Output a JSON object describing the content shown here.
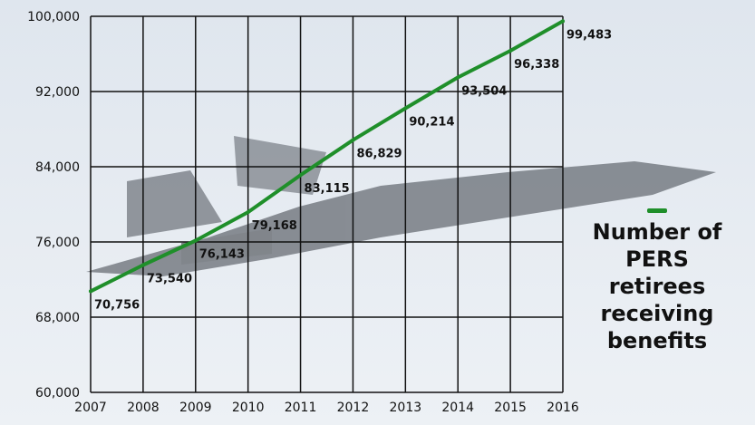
{
  "chart_data": {
    "type": "line",
    "x": [
      2007,
      2008,
      2009,
      2010,
      2011,
      2012,
      2013,
      2014,
      2015,
      2016
    ],
    "series": [
      {
        "name": "Number of PERS retirees receiving benefits",
        "values": [
          70756,
          73540,
          76143,
          79168,
          83115,
          86829,
          90214,
          93504,
          96338,
          99483
        ],
        "data_labels": [
          "70,756",
          "73,540",
          "76,143",
          "79,168",
          "83,115",
          "86,829",
          "90,214",
          "93,504",
          "96,338",
          "99,483"
        ],
        "color": "#1f8f2a"
      }
    ],
    "xlim": [
      2007,
      2016
    ],
    "ylim": [
      60000,
      100000
    ],
    "yticks": [
      60000,
      68000,
      76000,
      84000,
      92000,
      100000
    ],
    "ytick_labels": [
      "60,000",
      "68,000",
      "76,000",
      "84,000",
      "92,000",
      "100,000"
    ],
    "xtick_labels": [
      "2007",
      "2008",
      "2009",
      "2010",
      "2011",
      "2012",
      "2013",
      "2014",
      "2015",
      "2016"
    ],
    "grid": true,
    "legend_position": "right",
    "title": "",
    "xlabel": "",
    "ylabel": ""
  },
  "legend": {
    "label": "Number of PERS retirees receiving benefits"
  },
  "colors": {
    "line": "#1f8f2a",
    "grid": "#111111",
    "background": "#e6ecf3"
  }
}
